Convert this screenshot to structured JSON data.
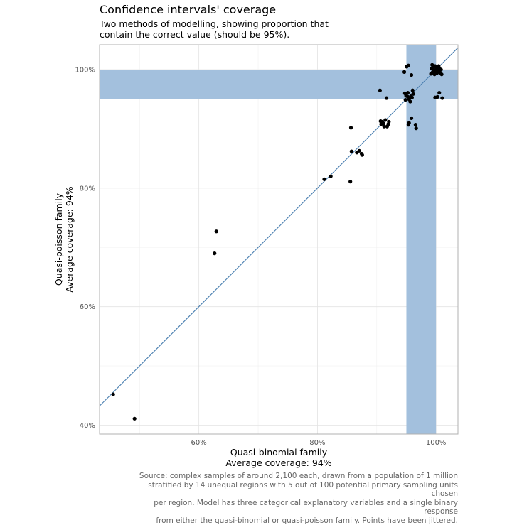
{
  "chart_data": {
    "type": "scatter",
    "title": "Confidence intervals' coverage",
    "subtitle_lines": [
      "Two methods of modelling, showing proportion that",
      "contain the correct value (should be 95%)."
    ],
    "xlabel_lines": [
      "Quasi-binomial family",
      "Average coverage: 94%"
    ],
    "ylabel_lines": [
      "Quasi-poisson family",
      "Average coverage: 94%"
    ],
    "caption_lines": [
      "Source: complex samples of around 2,100 each, drawn from a population of 1 million",
      "stratified by 14 unequal regions with 5 out of 100 potential primary sampling units chosen",
      "per region. Model has three categorical explanatory variables and a single binary response",
      "from either the quasi-binomial or quasi-poisson family. Points have been jittered."
    ],
    "xlim": [
      0.4325,
      1.037
    ],
    "ylim": [
      0.385,
      1.042
    ],
    "x_ticks": [
      {
        "value": 0.6,
        "label": "60%"
      },
      {
        "value": 0.8,
        "label": "80%"
      },
      {
        "value": 1.0,
        "label": "100%"
      }
    ],
    "y_ticks": [
      {
        "value": 0.4,
        "label": "40%"
      },
      {
        "value": 0.6,
        "label": "60%"
      },
      {
        "value": 0.8,
        "label": "80%"
      },
      {
        "value": 1.0,
        "label": "100%"
      }
    ],
    "target_band": [
      0.95,
      1.0
    ],
    "band_color": "#A3C0DD",
    "line_color": "#4A7FB0",
    "point_color": "#000000",
    "grid": true,
    "reference_line": "y = x",
    "points": [
      [
        0.4555,
        0.452
      ],
      [
        0.4915,
        0.411
      ],
      [
        0.6265,
        0.69
      ],
      [
        0.6295,
        0.727
      ],
      [
        0.8115,
        0.815
      ],
      [
        0.8225,
        0.82
      ],
      [
        0.8555,
        0.811
      ],
      [
        0.8565,
        0.902
      ],
      [
        0.8575,
        0.862
      ],
      [
        0.8665,
        0.86
      ],
      [
        0.8705,
        0.863
      ],
      [
        0.8745,
        0.858
      ],
      [
        0.8755,
        0.856
      ],
      [
        0.9055,
        0.965
      ],
      [
        0.9065,
        0.913
      ],
      [
        0.9075,
        0.908
      ],
      [
        0.9095,
        0.912
      ],
      [
        0.9115,
        0.909
      ],
      [
        0.9125,
        0.904
      ],
      [
        0.9145,
        0.915
      ],
      [
        0.9165,
        0.952
      ],
      [
        0.9175,
        0.904
      ],
      [
        0.9195,
        0.908
      ],
      [
        0.9205,
        0.912
      ],
      [
        0.9465,
        0.996
      ],
      [
        0.9475,
        0.96
      ],
      [
        0.9485,
        0.949
      ],
      [
        0.9495,
        0.956
      ],
      [
        0.9505,
        1.005
      ],
      [
        0.9515,
        0.955
      ],
      [
        0.9525,
        0.961
      ],
      [
        0.9535,
        1.007
      ],
      [
        0.9545,
        0.95
      ],
      [
        0.9555,
        0.952
      ],
      [
        0.9565,
        0.946
      ],
      [
        0.9575,
        0.955
      ],
      [
        0.9585,
        0.991
      ],
      [
        0.9595,
        0.953
      ],
      [
        0.9605,
        0.965
      ],
      [
        0.9615,
        0.959
      ],
      [
        0.9585,
        0.918
      ],
      [
        0.9535,
        0.907
      ],
      [
        0.9545,
        0.91
      ],
      [
        0.9655,
        0.907
      ],
      [
        0.9665,
        0.901
      ],
      [
        0.9915,
        0.993
      ],
      [
        0.9925,
        1.002
      ],
      [
        0.9935,
        1.008
      ],
      [
        0.9945,
        0.996
      ],
      [
        0.9955,
        1.004
      ],
      [
        0.9965,
        0.999
      ],
      [
        0.9975,
        0.992
      ],
      [
        0.9985,
        1.006
      ],
      [
        0.9995,
        0.997
      ],
      [
        1.0005,
        1.001
      ],
      [
        1.0015,
        0.994
      ],
      [
        1.0025,
        1.003
      ],
      [
        1.0035,
        0.998
      ],
      [
        1.0045,
        1.006
      ],
      [
        1.0055,
        0.996
      ],
      [
        1.0065,
        1.001
      ],
      [
        1.0075,
        0.994
      ],
      [
        1.0085,
        1.0
      ],
      [
        1.0095,
        0.992
      ],
      [
        0.9985,
        0.953
      ],
      [
        1.0025,
        0.954
      ],
      [
        1.0055,
        0.961
      ],
      [
        1.0105,
        0.952
      ],
      [
        1.0015,
        0.998
      ]
    ]
  }
}
